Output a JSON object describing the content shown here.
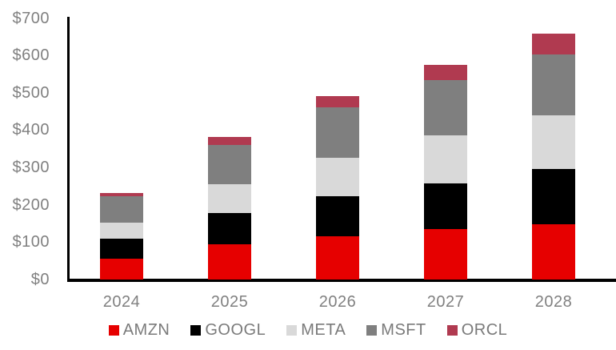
{
  "chart_data": {
    "type": "bar",
    "stacked": true,
    "title": "",
    "xlabel": "",
    "ylabel": "",
    "categories": [
      "2024",
      "2025",
      "2026",
      "2027",
      "2028"
    ],
    "series": [
      {
        "name": "AMZN",
        "color": "#e60000",
        "values": [
          55,
          95,
          116,
          136,
          149
        ]
      },
      {
        "name": "GOOGL",
        "color": "#000000",
        "values": [
          55,
          82,
          106,
          121,
          146
        ]
      },
      {
        "name": "META",
        "color": "#d9d9d9",
        "values": [
          42,
          78,
          105,
          130,
          145
        ]
      },
      {
        "name": "MSFT",
        "color": "#7f7f7f",
        "values": [
          72,
          106,
          133,
          146,
          162
        ]
      },
      {
        "name": "ORCL",
        "color": "#b03a50",
        "values": [
          7,
          20,
          30,
          41,
          56
        ]
      }
    ],
    "totals": [
      231,
      381,
      490,
      574,
      658
    ],
    "ylim": [
      0,
      700
    ],
    "y_tick_step": 100,
    "y_tick_labels": [
      "$700",
      "$600",
      "$500",
      "$400",
      "$300",
      "$200",
      "$100",
      "$0"
    ],
    "currency_prefix": "$",
    "grid": false,
    "legend_position": "bottom",
    "legend_entries": [
      "AMZN",
      "GOOGL",
      "META",
      "MSFT",
      "ORCL"
    ],
    "colors": {
      "axis": "#000000",
      "tick_label": "#808080",
      "legend_label": "#7a7a7a",
      "background": "#ffffff"
    }
  }
}
